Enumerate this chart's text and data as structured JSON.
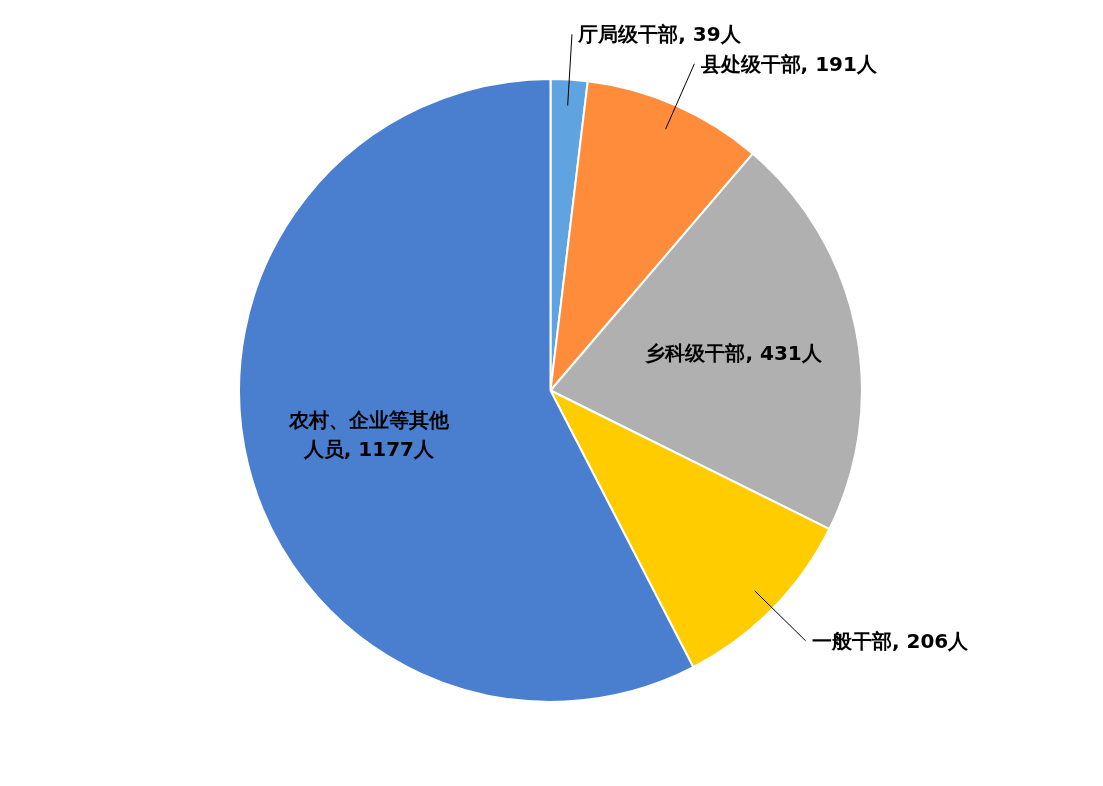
{
  "chart_data": {
    "type": "pie",
    "categories": [
      "厅局级干部",
      "县处级干部",
      "乡科级干部",
      "一般干部",
      "农村、企业等其他人员"
    ],
    "values": [
      39,
      191,
      431,
      206,
      1177
    ],
    "value_labels": [
      "39人",
      "191人",
      "431人",
      "206人",
      "1177人"
    ],
    "colors": [
      "#5fa3e1",
      "#ff8c3a",
      "#b0b0b0",
      "#ffcc00",
      "#4a7ecf"
    ]
  }
}
